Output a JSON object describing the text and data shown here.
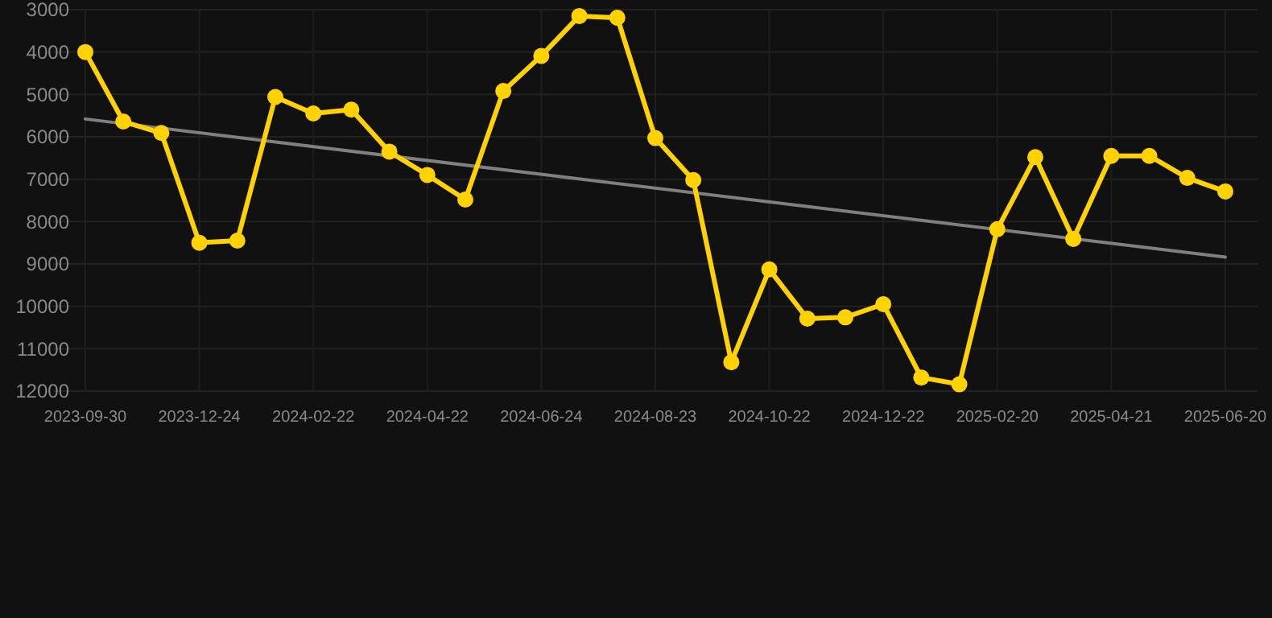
{
  "chart_data": {
    "type": "line",
    "categories": [
      "2023-09-30",
      null,
      null,
      "2023-12-24",
      null,
      null,
      "2024-02-22",
      null,
      null,
      "2024-04-22",
      null,
      null,
      "2024-06-24",
      null,
      null,
      "2024-08-23",
      null,
      null,
      "2024-10-22",
      null,
      null,
      "2024-12-22",
      null,
      null,
      "2025-02-20",
      null,
      null,
      "2025-04-21",
      null,
      null,
      "2025-06-20"
    ],
    "series": [
      {
        "color": "#ffd200",
        "values": [
          4000,
          5640,
          5910,
          8500,
          8450,
          5060,
          5450,
          5360,
          6350,
          6900,
          7480,
          4920,
          4090,
          3150,
          3190,
          6030,
          7020,
          11320,
          9130,
          10290,
          10260,
          9950,
          11680,
          11840,
          8180,
          6480,
          8410,
          6450,
          6450,
          6970,
          7290
        ]
      },
      {
        "type": "line",
        "color": "#808080",
        "marker": "none",
        "values": [
          5580,
          null,
          null,
          null,
          null,
          null,
          null,
          null,
          null,
          null,
          null,
          null,
          null,
          null,
          null,
          null,
          null,
          null,
          null,
          null,
          null,
          null,
          null,
          null,
          null,
          null,
          null,
          null,
          null,
          null,
          8840
        ]
      }
    ],
    "ylim": [
      12000,
      3000
    ],
    "yticks": [
      3000,
      4000,
      5000,
      6000,
      7000,
      8000,
      9000,
      10000,
      11000,
      12000
    ],
    "grid": true,
    "marker": "circle",
    "line_style": "solid"
  }
}
